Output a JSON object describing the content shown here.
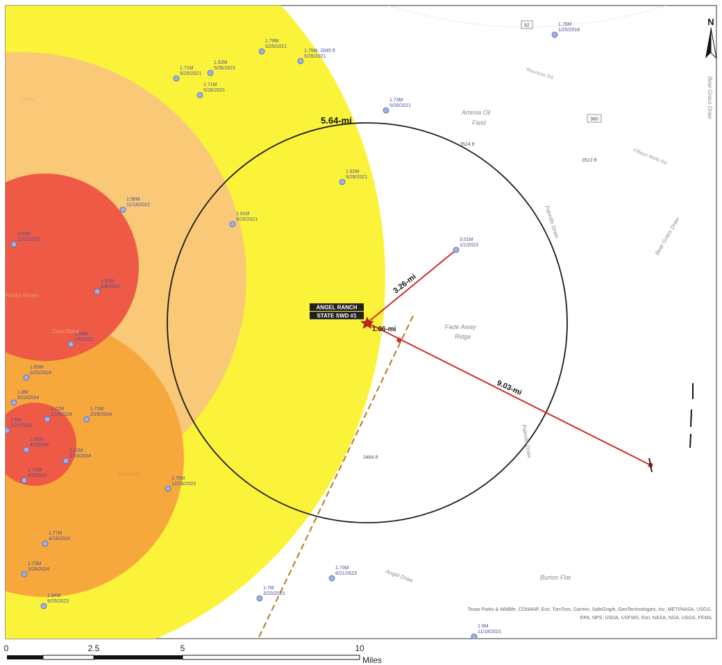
{
  "map": {
    "north_label": "N",
    "site_label_line1": "ANGEL RANCH",
    "site_label_line2": "STATE SWD #1",
    "attribution_line1": "Texas Parks & Wildlife, CONANP, Esri, TomTom, Garmin, SafeGraph, GeoTechnologies, Inc, METI/NASA, USGS,",
    "attribution_line2": "EPA, NPS, USDA, USFWS, Esri, NASA, NGA, USGS, FEMA",
    "distances": {
      "circle_radius": "5.64-mi",
      "to_3_01M": "3.26-mi",
      "to_nearby": "1.06-mi",
      "to_far_point": "9.03-mi"
    },
    "features": {
      "artesia_oil": "Artesia Oil",
      "field": "Field",
      "fade_away": "Fade Away",
      "ridge": "Ridge",
      "burton_flat": "Burton Flat",
      "angel_draw": "Angel Draw",
      "palmillo_draw_n": "Palmillo Draw",
      "palmillo_draw_s": "Palmillo Draw",
      "bear_grass_draw_right": "Bear Grass Draw",
      "bear_grass_draw_edge": "Bear Grass Draw",
      "elev_3464": "3464 ft",
      "elev_3513": "3513 ft",
      "elev_3524": "3524 ft",
      "road_a": "Rountree Rd",
      "road_b": "Fifteen Wells Rd",
      "shield_82": "82",
      "shield_360": "360",
      "left_place": "Rocky Arroyo",
      "left_place2": "Atoka",
      "left_place3": "Riverside",
      "left_place4": "Cass Draw"
    },
    "events": [
      {
        "mag": "1.78M",
        "date": "1/25/2018"
      },
      {
        "mag": "1.79M",
        "date": "5/25/2021"
      },
      {
        "mag": "1.75M",
        "date": "5/26/2021",
        "extra": "2045 ft"
      },
      {
        "mag": "1.71M",
        "date": "5/25/2021"
      },
      {
        "mag": "1.62M",
        "date": "5/26/2021"
      },
      {
        "mag": "1.71M",
        "date": "5/26/2021"
      },
      {
        "mag": "1.73M",
        "date": "5/26/2021"
      },
      {
        "mag": "1.82M",
        "date": "5/26/2021"
      },
      {
        "mag": "1.58M",
        "date": "11/18/2021"
      },
      {
        "mag": "1.91M",
        "date": "5/25/2021"
      },
      {
        "mag": "3.01M",
        "date": "1/1/2022"
      },
      {
        "mag": "2.53M",
        "date": "11/22/2021"
      },
      {
        "mag": "1.57M",
        "date": "1/8/2023"
      },
      {
        "mag": "1.64M",
        "date": "1/9/2023"
      },
      {
        "mag": "1.65M",
        "date": "3/25/2024"
      },
      {
        "mag": "1.71M",
        "date": "2/29/2024"
      },
      {
        "mag": "2.42M",
        "date": "2/24/2024"
      },
      {
        "mag": "1.76M",
        "date": "12/28/2023"
      },
      {
        "mag": "1.77M",
        "date": "4/18/2024"
      },
      {
        "mag": "1.73M",
        "date": "3/26/2024"
      },
      {
        "mag": "1.94M",
        "date": "9/25/2023"
      },
      {
        "mag": "1.7M",
        "date": "3/20/2023"
      },
      {
        "mag": "1.73M",
        "date": "8/21/2023"
      },
      {
        "mag": "1.6M",
        "date": "11/18/2021"
      },
      {
        "mag": "1.8M",
        "date": "5/12/2024"
      },
      {
        "mag": "1.91M",
        "date": "4/2/2024"
      },
      {
        "mag": "1.72M",
        "date": "1/14/2024"
      },
      {
        "mag": "1.6M",
        "date": "2/27/2024"
      },
      {
        "mag": "2.71M",
        "date": "4/8/2024"
      }
    ],
    "scale_bar": {
      "labels": [
        "0",
        "2.5",
        "5",
        "10"
      ],
      "unit": "Miles"
    },
    "colors": {
      "zone_red": "#ee5a45",
      "zone_orange": "#f6a83c",
      "zone_light_orange": "#f9c978",
      "zone_yellow": "#fbf33a",
      "event_dot": "#9eb0e8",
      "line_red": "#d62828"
    }
  }
}
